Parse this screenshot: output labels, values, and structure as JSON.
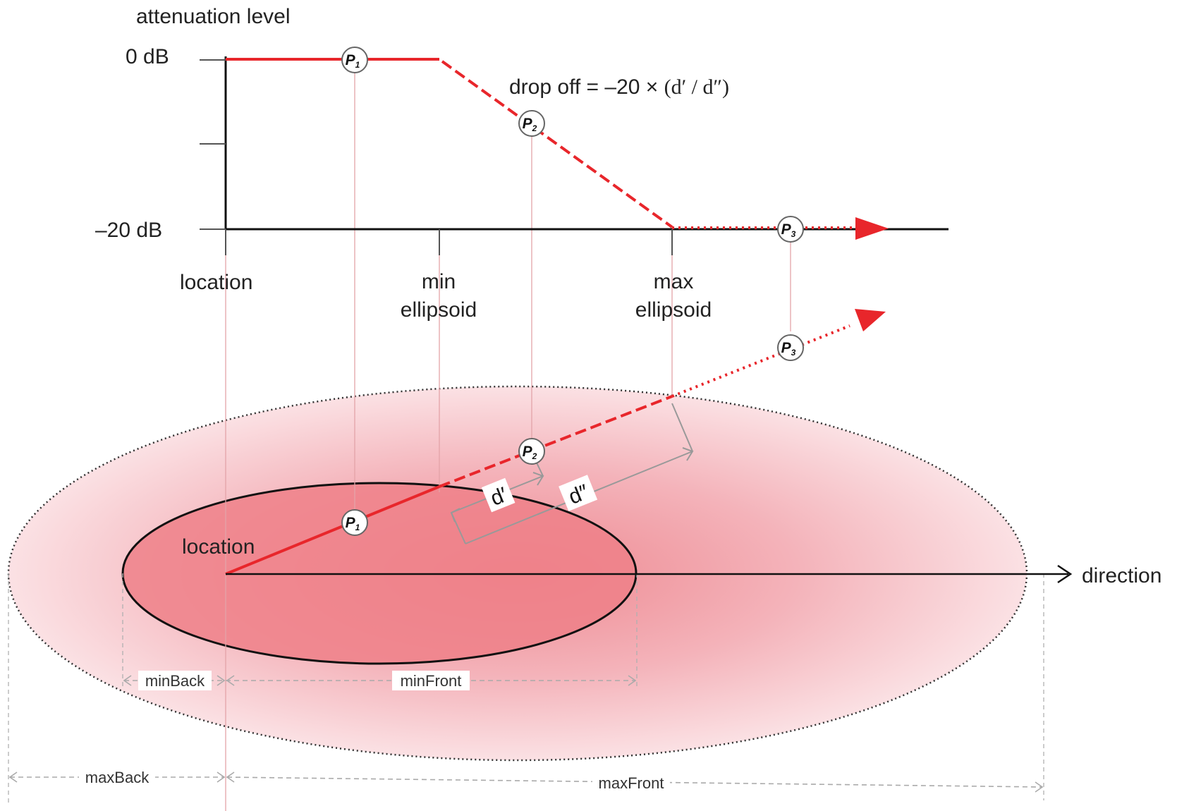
{
  "diagram": {
    "graph": {
      "y_axis_title": "attenuation level",
      "y_tick_top": "0 dB",
      "y_tick_bottom": "–20 dB",
      "x_labels": {
        "location": "location",
        "min_line1": "min",
        "min_line2": "ellipsoid",
        "max_line1": "max",
        "max_line2": "ellipsoid"
      },
      "formula": {
        "prefix": "drop off = –20 × ",
        "expr": "(d′ / d″)"
      }
    },
    "markers": {
      "letter": "P",
      "p1": "1",
      "p2": "2",
      "p3": "3"
    },
    "ellipse": {
      "location": "location",
      "direction": "direction",
      "d_prime": "d′",
      "d_double_prime": "d″"
    },
    "dimensions": {
      "min_back": "minBack",
      "min_front": "minFront",
      "max_back": "maxBack",
      "max_front": "maxFront"
    },
    "colors": {
      "accent_red": "#e8262b",
      "inner_fill": "#ee8088",
      "outer_fill": "#f7c7cd",
      "guide": "#999999"
    }
  }
}
